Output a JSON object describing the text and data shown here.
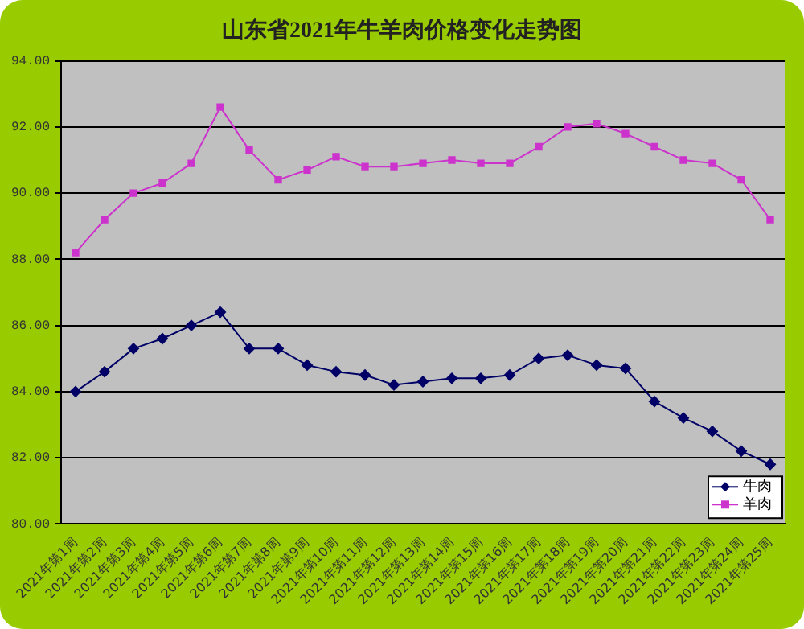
{
  "chart_data": {
    "type": "line",
    "title": "山东省2021年牛羊肉价格变化走势图",
    "categories": [
      "2021年第1周",
      "2021年第2周",
      "2021年第3周",
      "2021年第4周",
      "2021年第5周",
      "2021年第6周",
      "2021年第7周",
      "2021年第8周",
      "2021年第9周",
      "2021年第10周",
      "2021年第11周",
      "2021年第12周",
      "2021年第13周",
      "2021年第14周",
      "2021年第15周",
      "2021年第16周",
      "2021年第17周",
      "2021年第18周",
      "2021年第19周",
      "2021年第20周",
      "2021年第21周",
      "2021年第22周",
      "2021年第23周",
      "2021年第24周",
      "2021年第25周"
    ],
    "series": [
      {
        "name": "牛肉",
        "color": "#000066",
        "marker": "diamond",
        "values": [
          84.0,
          84.6,
          85.3,
          85.6,
          86.0,
          86.4,
          85.3,
          85.3,
          84.8,
          84.6,
          84.5,
          84.2,
          84.3,
          84.4,
          84.4,
          84.5,
          85.0,
          85.1,
          84.8,
          84.7,
          83.7,
          83.2,
          82.8,
          82.2,
          81.8
        ]
      },
      {
        "name": "羊肉",
        "color": "#cc33cc",
        "marker": "square",
        "values": [
          88.2,
          89.2,
          90.0,
          90.3,
          90.9,
          92.6,
          91.3,
          90.4,
          90.7,
          91.1,
          90.8,
          90.8,
          90.9,
          91.0,
          90.9,
          90.9,
          91.4,
          92.0,
          92.1,
          91.8,
          91.4,
          91.0,
          90.9,
          90.4,
          89.2
        ]
      }
    ],
    "ylim": [
      80,
      94
    ],
    "yticks": [
      {
        "value": 80,
        "label": "80.00"
      },
      {
        "value": 82,
        "label": "82.00"
      },
      {
        "value": 84,
        "label": "84.00"
      },
      {
        "value": 86,
        "label": "86.00"
      },
      {
        "value": 88,
        "label": "88.00"
      },
      {
        "value": 90,
        "label": "90.00"
      },
      {
        "value": 92,
        "label": "92.00"
      },
      {
        "value": 94,
        "label": "94.00"
      }
    ],
    "grid": "y",
    "legend": "bottom right",
    "line_style": "solid"
  }
}
